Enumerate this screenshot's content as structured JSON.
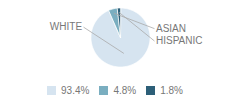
{
  "chart_data": {
    "type": "pie",
    "categories": [
      "WHITE",
      "ASIAN",
      "HISPANIC"
    ],
    "values": [
      93.4,
      4.8,
      1.8
    ],
    "value_labels": [
      "93.4%",
      "4.8%",
      "1.8%"
    ],
    "colors": [
      "#d6e4f0",
      "#7aaec0",
      "#2d5f78"
    ],
    "legend": "bottom"
  }
}
